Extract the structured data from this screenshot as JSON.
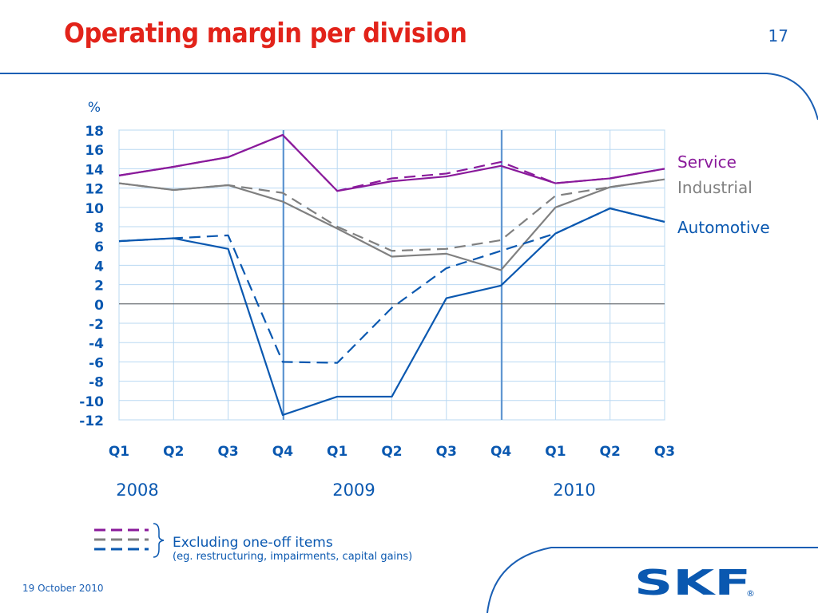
{
  "header": {
    "title": "Operating margin per division",
    "page_number": "17"
  },
  "footer": {
    "date": "19 October 2010"
  },
  "legend_note": {
    "main": "Excluding one-off items",
    "sub": "(eg. restructuring, impairments, capital gains)"
  },
  "logo": {
    "text": "SKF",
    "registered": "®"
  },
  "colors": {
    "service": "#8a1a9b",
    "industrial": "#808080",
    "automotive": "#0a58b0",
    "title": "#e2231a"
  },
  "chart_data": {
    "type": "line",
    "ylabel": "%",
    "ylim": [
      -12,
      18
    ],
    "yticks": [
      18,
      16,
      14,
      12,
      10,
      8,
      6,
      4,
      2,
      0,
      -2,
      -4,
      -6,
      -8,
      -10,
      -12
    ],
    "categories": [
      "Q1",
      "Q2",
      "Q3",
      "Q4",
      "Q1",
      "Q2",
      "Q3",
      "Q4",
      "Q1",
      "Q2",
      "Q3"
    ],
    "years": [
      "2008",
      "2009",
      "2010"
    ],
    "grid": true,
    "series": [
      {
        "name": "Service",
        "style": "solid",
        "color": "#8a1a9b",
        "values": [
          13.3,
          14.2,
          15.2,
          17.5,
          11.7,
          12.7,
          13.2,
          14.3,
          12.5,
          13.0,
          14.0
        ]
      },
      {
        "name": "",
        "style": "dashed",
        "color": "#8a1a9b",
        "values": [
          13.3,
          14.2,
          15.2,
          17.5,
          11.7,
          13.0,
          13.5,
          14.7,
          12.5,
          13.0,
          14.0
        ]
      },
      {
        "name": "Industrial",
        "style": "solid",
        "color": "#808080",
        "values": [
          12.5,
          11.8,
          12.3,
          10.6,
          7.8,
          4.9,
          5.2,
          3.5,
          10.0,
          12.1,
          12.9
        ]
      },
      {
        "name": "",
        "style": "dashed",
        "color": "#808080",
        "values": [
          12.5,
          11.8,
          12.3,
          11.5,
          8.0,
          5.5,
          5.7,
          6.6,
          11.2,
          12.1,
          12.9
        ]
      },
      {
        "name": "Automotive",
        "style": "solid",
        "color": "#0a58b0",
        "values": [
          6.5,
          6.8,
          5.7,
          -11.5,
          -9.6,
          -9.6,
          0.6,
          1.9,
          7.3,
          9.9,
          8.5
        ]
      },
      {
        "name": "",
        "style": "dashed",
        "color": "#0a58b0",
        "values": [
          6.5,
          6.8,
          7.1,
          -6.0,
          -6.1,
          -0.4,
          3.7,
          5.5,
          7.3,
          9.9,
          8.5
        ]
      }
    ]
  }
}
